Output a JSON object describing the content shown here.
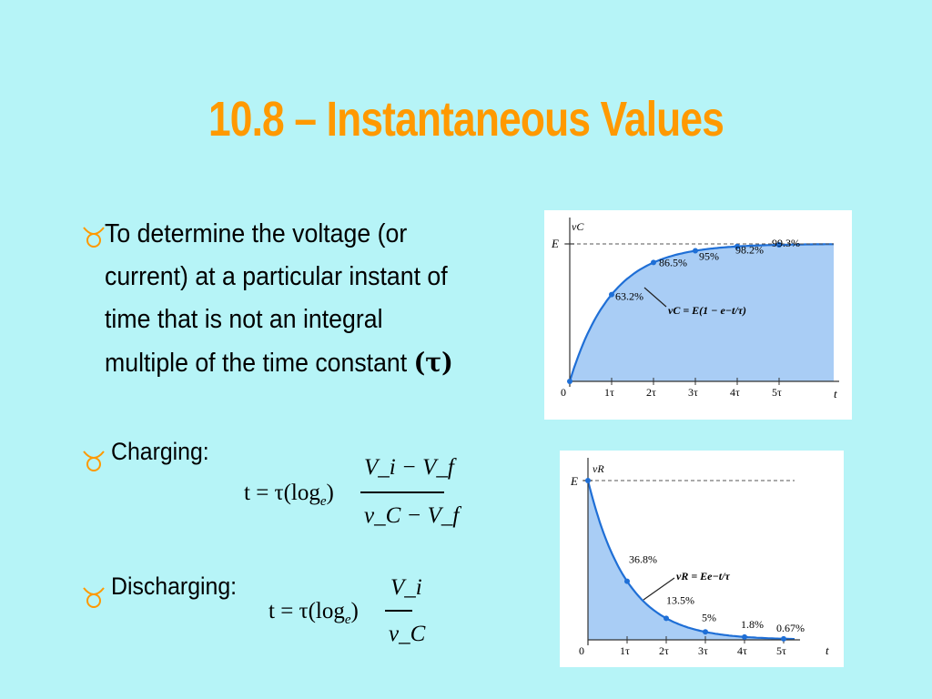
{
  "title": "10.8 – Instantaneous Values",
  "bullets": {
    "intro_text": "To determine the voltage (or current) at a particular instant of time that is not an integral multiple of the time constant",
    "intro_tau": "(τ)",
    "charging_label": "Charging:",
    "discharging_label": "Discharging:"
  },
  "formulas": {
    "charging": {
      "lhs": "t = τ(log",
      "sub": "e",
      "rparen": ")",
      "numerator": "V_i − V_f",
      "denominator": "v_C − V_f"
    },
    "discharging": {
      "lhs": "t = τ(log",
      "sub": "e",
      "rparen": ")",
      "numerator": "V_i",
      "denominator": "v_C"
    }
  },
  "charts": {
    "charging": {
      "y_axis_label": "vC",
      "x_axis_label": "t",
      "level_label": "E",
      "equation": "vC = E(1 − e−t/τ)",
      "x_ticks": [
        "0",
        "1τ",
        "2τ",
        "3τ",
        "4τ",
        "5τ"
      ],
      "point_labels": [
        "63.2%",
        "86.5%",
        "95%",
        "98.2%",
        "99.3%"
      ]
    },
    "discharging": {
      "y_axis_label": "vR",
      "x_axis_label": "t",
      "level_label": "E",
      "equation": "vR = Ee−t/τ",
      "x_ticks": [
        "0",
        "1τ",
        "2τ",
        "3τ",
        "4τ",
        "5τ"
      ],
      "point_labels": [
        "36.8%",
        "13.5%",
        "5%",
        "1.8%",
        "0.67%"
      ]
    }
  },
  "chart_data": [
    {
      "type": "area",
      "x": [
        0,
        1,
        2,
        3,
        4,
        5
      ],
      "values": [
        0,
        63.2,
        86.5,
        95,
        98.2,
        99.3
      ],
      "xlabel": "t",
      "ylabel": "vC"
    },
    {
      "type": "area",
      "x": [
        0,
        1,
        2,
        3,
        4,
        5
      ],
      "values": [
        100,
        36.8,
        13.5,
        5,
        1.8,
        0.67
      ],
      "xlabel": "t",
      "ylabel": "vR"
    }
  ],
  "colors": {
    "title": "#ff9900",
    "background": "#b6f4f7",
    "fill": "#a9cdf5",
    "curve": "#1f6fd6"
  }
}
